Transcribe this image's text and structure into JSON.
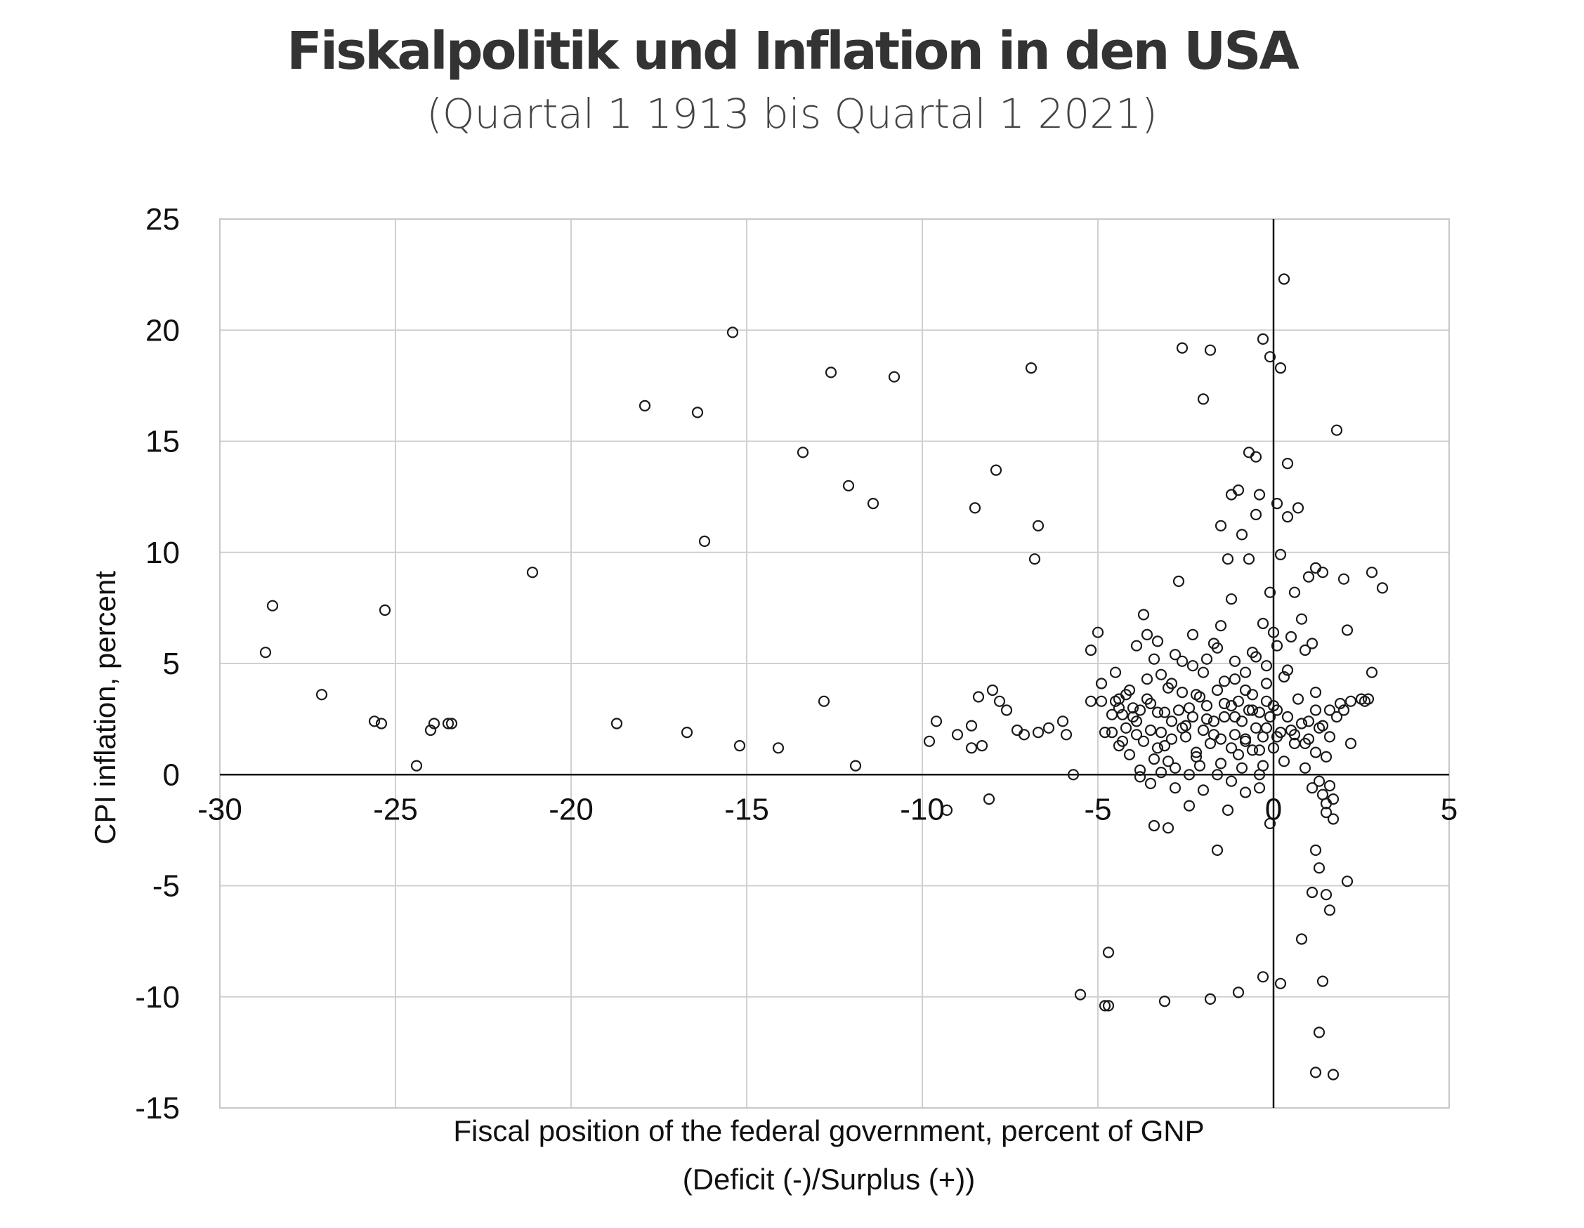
{
  "title": "Fiskalpolitik und Inflation in den USA",
  "subtitle": "(Quartal 1 1913 bis Quartal 1 2021)",
  "chart_data": {
    "type": "scatter",
    "xlabel": "Fiscal position of the federal government, percent of GNP",
    "xlabel2": "(Deficit (-)/Surplus (+))",
    "ylabel": "CPI inflation, percent",
    "xlim": [
      -30,
      5
    ],
    "ylim": [
      -15,
      25
    ],
    "xticks": [
      -30,
      -25,
      -20,
      -15,
      -10,
      -5,
      0,
      5
    ],
    "yticks": [
      -15,
      -10,
      -5,
      0,
      5,
      10,
      15,
      20,
      25
    ],
    "xtick_labels": [
      "-30",
      "-25",
      "-20",
      "-15",
      "-10",
      "-5",
      "0",
      "5"
    ],
    "ytick_labels": [
      "-15",
      "-10",
      "-5",
      "0",
      "5",
      "10",
      "15",
      "20",
      "25"
    ],
    "grid": true,
    "marker": "hollow-circle",
    "points": [
      [
        -28.7,
        5.5
      ],
      [
        -28.5,
        7.6
      ],
      [
        -27.1,
        3.6
      ],
      [
        -25.6,
        2.4
      ],
      [
        -25.4,
        2.3
      ],
      [
        -25.3,
        7.4
      ],
      [
        -24.4,
        0.4
      ],
      [
        -24,
        2.0
      ],
      [
        -23.9,
        2.3
      ],
      [
        -23.5,
        2.3
      ],
      [
        -23.4,
        2.3
      ],
      [
        -21.1,
        9.1
      ],
      [
        -18.7,
        2.3
      ],
      [
        -17.9,
        16.6
      ],
      [
        -16.7,
        1.9
      ],
      [
        -16.4,
        16.3
      ],
      [
        -16.2,
        10.5
      ],
      [
        -15.4,
        19.9
      ],
      [
        -15.2,
        1.3
      ],
      [
        -14.1,
        1.2
      ],
      [
        -13.4,
        14.5
      ],
      [
        -12.8,
        3.3
      ],
      [
        -12.6,
        18.1
      ],
      [
        -12.1,
        13.0
      ],
      [
        -11.9,
        0.4
      ],
      [
        -11.4,
        12.2
      ],
      [
        -10.8,
        17.9
      ],
      [
        -9.8,
        1.5
      ],
      [
        -9.6,
        2.4
      ],
      [
        -9.3,
        -1.6
      ],
      [
        -9.0,
        1.8
      ],
      [
        -8.6,
        2.2
      ],
      [
        -8.6,
        1.2
      ],
      [
        -8.5,
        12.0
      ],
      [
        -8.4,
        3.5
      ],
      [
        -8.3,
        1.3
      ],
      [
        -8.1,
        -1.1
      ],
      [
        -8.0,
        3.8
      ],
      [
        -7.9,
        13.7
      ],
      [
        -7.8,
        3.3
      ],
      [
        -7.6,
        2.9
      ],
      [
        -7.3,
        2.0
      ],
      [
        -7.1,
        1.8
      ],
      [
        -6.9,
        18.3
      ],
      [
        -6.8,
        9.7
      ],
      [
        -6.7,
        11.2
      ],
      [
        -6.7,
        1.9
      ],
      [
        -6.4,
        2.1
      ],
      [
        -6.0,
        2.4
      ],
      [
        -5.9,
        1.8
      ],
      [
        -5.7,
        0.0
      ],
      [
        -5.5,
        -9.9
      ],
      [
        -5.2,
        5.6
      ],
      [
        -5.2,
        3.3
      ],
      [
        -5.0,
        6.4
      ],
      [
        -4.9,
        4.1
      ],
      [
        -4.9,
        3.3
      ],
      [
        -4.8,
        1.9
      ],
      [
        -4.8,
        -10.4
      ],
      [
        -4.7,
        -10.4
      ],
      [
        -4.7,
        -8.0
      ],
      [
        -4.6,
        2.7
      ],
      [
        -4.5,
        4.6
      ],
      [
        -4.4,
        3.4
      ],
      [
        -4.3,
        1.5
      ],
      [
        -4.2,
        2.1
      ],
      [
        -4.1,
        3.8
      ],
      [
        -4.0,
        2.6
      ],
      [
        -3.9,
        1.8
      ],
      [
        -3.8,
        0.2
      ],
      [
        -3.7,
        7.2
      ],
      [
        -3.6,
        6.3
      ],
      [
        -3.5,
        3.2
      ],
      [
        -3.4,
        5.2
      ],
      [
        -3.4,
        -2.3
      ],
      [
        -3.3,
        1.2
      ],
      [
        -3.2,
        4.5
      ],
      [
        -3.1,
        -10.2
      ],
      [
        -3.1,
        2.8
      ],
      [
        -3.0,
        0.6
      ],
      [
        -3.0,
        -2.4
      ],
      [
        -2.9,
        1.6
      ],
      [
        -2.8,
        5.4
      ],
      [
        -2.7,
        8.7
      ],
      [
        -2.6,
        19.2
      ],
      [
        -2.6,
        3.7
      ],
      [
        -2.5,
        2.2
      ],
      [
        -2.4,
        -1.4
      ],
      [
        -2.3,
        4.9
      ],
      [
        -2.2,
        1.0
      ],
      [
        -2.2,
        3.6
      ],
      [
        -2.1,
        0.4
      ],
      [
        -2.0,
        16.9
      ],
      [
        -1.9,
        2.5
      ],
      [
        -1.9,
        5.2
      ],
      [
        -1.8,
        -10.1
      ],
      [
        -1.8,
        19.1
      ],
      [
        -1.7,
        1.8
      ],
      [
        -1.6,
        5.7
      ],
      [
        -1.6,
        -3.4
      ],
      [
        -1.5,
        11.2
      ],
      [
        -1.5,
        6.7
      ],
      [
        -1.4,
        3.2
      ],
      [
        -1.3,
        9.7
      ],
      [
        -1.3,
        -1.6
      ],
      [
        -1.2,
        12.6
      ],
      [
        -1.2,
        7.9
      ],
      [
        -1.1,
        4.3
      ],
      [
        -1.1,
        2.6
      ],
      [
        -1.0,
        12.8
      ],
      [
        -1.0,
        0.9
      ],
      [
        -1.0,
        -9.8
      ],
      [
        -0.9,
        10.8
      ],
      [
        -0.8,
        3.8
      ],
      [
        -0.8,
        1.5
      ],
      [
        -0.7,
        14.5
      ],
      [
        -0.7,
        9.7
      ],
      [
        -0.6,
        2.9
      ],
      [
        -0.6,
        5.5
      ],
      [
        -0.5,
        11.7
      ],
      [
        -0.5,
        14.3
      ],
      [
        -0.4,
        1.1
      ],
      [
        -0.4,
        12.6
      ],
      [
        -0.4,
        -0.6
      ],
      [
        -0.3,
        6.8
      ],
      [
        -0.3,
        19.6
      ],
      [
        -0.3,
        -9.1
      ],
      [
        -0.2,
        4.1
      ],
      [
        -0.2,
        2.1
      ],
      [
        -0.1,
        18.8
      ],
      [
        -0.1,
        -2.2
      ],
      [
        -0.1,
        8.2
      ],
      [
        0.0,
        3.1
      ],
      [
        0.0,
        6.4
      ],
      [
        0.1,
        12.2
      ],
      [
        0.1,
        1.7
      ],
      [
        0.2,
        18.3
      ],
      [
        0.2,
        9.9
      ],
      [
        0.2,
        -9.4
      ],
      [
        0.3,
        22.3
      ],
      [
        0.3,
        4.4
      ],
      [
        0.4,
        14.0
      ],
      [
        0.4,
        11.6
      ],
      [
        0.5,
        6.2
      ],
      [
        0.5,
        2.0
      ],
      [
        0.6,
        8.2
      ],
      [
        0.7,
        3.4
      ],
      [
        0.7,
        12.0
      ],
      [
        0.8,
        -7.4
      ],
      [
        0.8,
        7.0
      ],
      [
        0.9,
        1.4
      ],
      [
        0.9,
        5.6
      ],
      [
        1.0,
        8.9
      ],
      [
        1.0,
        2.4
      ],
      [
        1.1,
        5.9
      ],
      [
        1.1,
        -0.6
      ],
      [
        1.1,
        -5.3
      ],
      [
        1.2,
        -3.4
      ],
      [
        1.2,
        -13.4
      ],
      [
        1.2,
        3.7
      ],
      [
        1.2,
        9.3
      ],
      [
        1.3,
        -4.2
      ],
      [
        1.3,
        -11.6
      ],
      [
        1.3,
        2.1
      ],
      [
        1.4,
        9.1
      ],
      [
        1.4,
        -9.3
      ],
      [
        1.5,
        -5.4
      ],
      [
        1.5,
        0.8
      ],
      [
        1.5,
        -1.3
      ],
      [
        1.6,
        2.9
      ],
      [
        1.6,
        -6.1
      ],
      [
        1.7,
        -2.0
      ],
      [
        1.7,
        -13.5
      ],
      [
        1.8,
        15.5
      ],
      [
        1.8,
        2.6
      ],
      [
        1.9,
        3.2
      ],
      [
        2.0,
        8.8
      ],
      [
        2.0,
        2.9
      ],
      [
        2.1,
        -4.8
      ],
      [
        2.1,
        6.5
      ],
      [
        2.2,
        1.4
      ],
      [
        2.2,
        3.3
      ],
      [
        2.5,
        3.4
      ],
      [
        2.6,
        3.3
      ],
      [
        2.7,
        3.4
      ],
      [
        2.8,
        4.6
      ],
      [
        2.8,
        9.1
      ],
      [
        3.1,
        8.4
      ],
      [
        -4.5,
        3.3
      ],
      [
        -4.4,
        3.0
      ],
      [
        -4.3,
        2.7
      ],
      [
        -4.2,
        3.6
      ],
      [
        -4.0,
        3.0
      ],
      [
        -3.9,
        2.4
      ],
      [
        -3.8,
        2.9
      ],
      [
        -3.6,
        3.4
      ],
      [
        -3.5,
        2.0
      ],
      [
        -3.3,
        2.8
      ],
      [
        -3.2,
        1.9
      ],
      [
        -3.0,
        3.9
      ],
      [
        -2.9,
        2.4
      ],
      [
        -2.7,
        2.9
      ],
      [
        -2.6,
        2.1
      ],
      [
        -2.4,
        3.0
      ],
      [
        -2.3,
        2.6
      ],
      [
        -2.1,
        3.5
      ],
      [
        -2.0,
        2.0
      ],
      [
        -1.9,
        3.1
      ],
      [
        -1.7,
        2.4
      ],
      [
        -1.6,
        3.8
      ],
      [
        -1.5,
        1.6
      ],
      [
        -1.4,
        2.6
      ],
      [
        -1.2,
        3.1
      ],
      [
        -1.1,
        1.8
      ],
      [
        -1.0,
        3.3
      ],
      [
        -0.9,
        2.4
      ],
      [
        -0.8,
        1.6
      ],
      [
        -0.7,
        2.9
      ],
      [
        -0.6,
        3.6
      ],
      [
        -0.5,
        2.1
      ],
      [
        -0.4,
        2.8
      ],
      [
        -0.3,
        1.7
      ],
      [
        -0.2,
        3.3
      ],
      [
        -0.1,
        2.6
      ],
      [
        0.1,
        2.9
      ],
      [
        0.2,
        1.9
      ],
      [
        0.4,
        2.6
      ],
      [
        0.6,
        1.8
      ],
      [
        0.8,
        2.3
      ],
      [
        1.0,
        1.6
      ],
      [
        1.2,
        2.9
      ],
      [
        1.4,
        2.2
      ],
      [
        1.6,
        1.7
      ],
      [
        -4.6,
        1.9
      ],
      [
        -4.4,
        1.3
      ],
      [
        -4.1,
        0.9
      ],
      [
        -3.7,
        1.5
      ],
      [
        -3.4,
        0.7
      ],
      [
        -3.1,
        1.3
      ],
      [
        -2.8,
        0.3
      ],
      [
        -2.5,
        1.7
      ],
      [
        -2.2,
        0.8
      ],
      [
        -1.8,
        1.4
      ],
      [
        -1.5,
        0.5
      ],
      [
        -1.2,
        1.2
      ],
      [
        -0.9,
        0.3
      ],
      [
        -0.6,
        1.1
      ],
      [
        -0.3,
        0.4
      ],
      [
        0.0,
        1.2
      ],
      [
        0.3,
        0.6
      ],
      [
        0.6,
        1.4
      ],
      [
        0.9,
        0.3
      ],
      [
        1.2,
        1.0
      ],
      [
        1.3,
        -0.3
      ],
      [
        1.4,
        -0.9
      ],
      [
        1.5,
        -1.7
      ],
      [
        1.6,
        -0.5
      ],
      [
        1.7,
        -1.1
      ],
      [
        -3.9,
        5.8
      ],
      [
        -3.6,
        4.3
      ],
      [
        -3.3,
        6.0
      ],
      [
        -2.9,
        4.1
      ],
      [
        -2.6,
        5.1
      ],
      [
        -2.3,
        6.3
      ],
      [
        -2.0,
        4.6
      ],
      [
        -1.7,
        5.9
      ],
      [
        -1.4,
        4.2
      ],
      [
        -1.1,
        5.1
      ],
      [
        -0.8,
        4.6
      ],
      [
        -0.5,
        5.3
      ],
      [
        -0.2,
        4.9
      ],
      [
        0.1,
        5.8
      ],
      [
        0.4,
        4.7
      ],
      [
        -3.8,
        -0.1
      ],
      [
        -3.5,
        -0.4
      ],
      [
        -3.2,
        0.1
      ],
      [
        -2.8,
        -0.6
      ],
      [
        -2.4,
        0.0
      ],
      [
        -2.0,
        -0.7
      ],
      [
        -1.6,
        0.0
      ],
      [
        -1.2,
        -0.3
      ],
      [
        -0.8,
        -0.8
      ],
      [
        -0.4,
        0.0
      ]
    ]
  }
}
